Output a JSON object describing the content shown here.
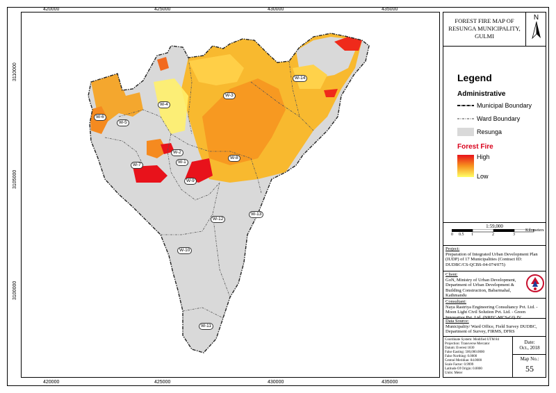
{
  "map": {
    "title": "FOREST FIRE MAP OF RESUNGA MUNICIPALITY, GULMI",
    "north_label": "N",
    "x_ticks": [
      "420000",
      "425000",
      "430000",
      "435000"
    ],
    "y_ticks": [
      "3110000",
      "3105000",
      "3100000"
    ],
    "wards": [
      "W-2",
      "W-3",
      "W-4",
      "W-5",
      "W-6",
      "W-7",
      "W-8",
      "W-9",
      "W-10",
      "W-11",
      "W-12",
      "W-13",
      "W-14",
      "W-1"
    ]
  },
  "legend": {
    "title": "Legend",
    "administrative_heading": "Administrative",
    "municipal_boundary": "Municipal Boundary",
    "ward_boundary": "Ward Boundary",
    "area": "Resunga",
    "forest_fire_heading": "Forest Fire",
    "high": "High",
    "low": "Low",
    "colors": {
      "high": "#e8121b",
      "low": "#ffff66",
      "area": "#d9d9d9"
    }
  },
  "scale": {
    "ratio": "1:59,000",
    "unit": "Kilometers",
    "labels": [
      "0",
      "0.5",
      "1",
      "2",
      "3"
    ]
  },
  "project": {
    "label": "Project:",
    "text": "Preparation of Integrated Urban Development Plan (IUDP) of 17 Municipalities (Contract ID: DUDBC/CS-QCBS-04-074/075)"
  },
  "client": {
    "label": "Client:",
    "text": "GoN, Ministry of Urban Development, Department of Urban Development & Building Construction, Babarmahal, Kathmandu"
  },
  "consultant": {
    "label": "Consultant:",
    "text": "Naya Rastriya Engineering Consultancy Pvt. Ltd. - Moon Light Civil Solution Pvt. Ltd. - Green Innovative Pvt. Ltd. (NREC-MCS-GI) JV"
  },
  "data_source": {
    "label": "Data Source:",
    "text": "Municipality/ Ward Office, Field Survey DUDBC, Department of Survey, FIRMS, DFRS"
  },
  "coordinate_system": [
    "Coordinate System: Modified UTM 84",
    "Projection: Transverse Mercator",
    "Datum: Everest 1830",
    "False Easting: 500,000.0000",
    "False Northing: 0.0000",
    "Central Meridian: 84.0000",
    "Scale Factor: 0.9999",
    "Latitude Of Origin: 0.0000",
    "Units: Meter"
  ],
  "date": {
    "label": "Date:",
    "value": "Oct., 2018"
  },
  "map_no": {
    "label": "Map No.:",
    "value": "55"
  }
}
